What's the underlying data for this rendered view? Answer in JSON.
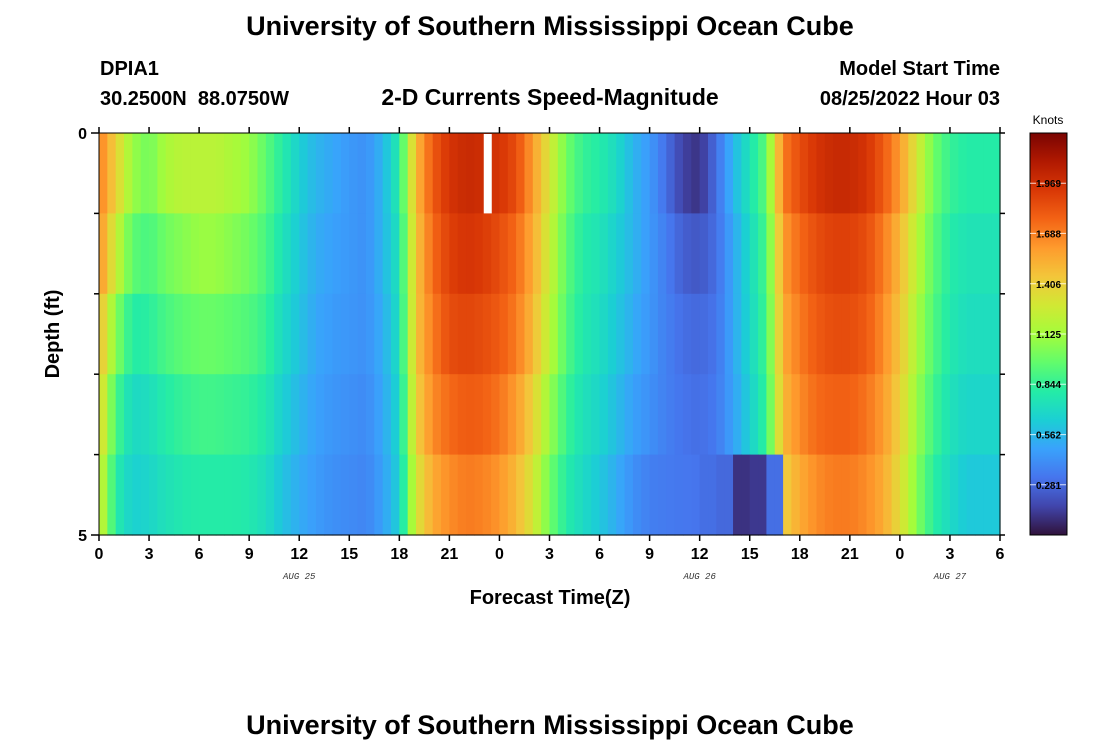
{
  "header": {
    "title": "University of Southern Mississippi Ocean Cube",
    "station_id": "DPIA1",
    "station_coords": "30.2500N  88.0750W",
    "plot_title": "2-D Currents Speed-Magnitude",
    "model_start_label": "Model Start Time",
    "model_start_value": "08/25/2022 Hour 03",
    "second_title": "University of Southern Mississippi Ocean Cube"
  },
  "chart_data": {
    "type": "heatmap",
    "title": "2-D Currents Speed-Magnitude",
    "xlabel": "Forecast Time(Z)",
    "ylabel": "Depth (ft)",
    "x_tick_labels": [
      "0",
      "3",
      "6",
      "9",
      "12",
      "15",
      "18",
      "21",
      "0",
      "3",
      "6",
      "9",
      "12",
      "15",
      "18",
      "21",
      "0",
      "3",
      "6"
    ],
    "date_labels": [
      {
        "text": "AUG 25",
        "tick": 4
      },
      {
        "text": "AUG 26",
        "tick": 12
      },
      {
        "text": "AUG 27",
        "tick": 17
      }
    ],
    "y_tick_labels": [
      "0",
      "5"
    ],
    "ylim": [
      0,
      5
    ],
    "x_hours": [
      0,
      54
    ],
    "colorbar": {
      "label": "Knots",
      "tick_labels": [
        "1.969",
        "1.688",
        "1.406",
        "1.125",
        "0.844",
        "0.562",
        "0.281"
      ],
      "tick_values": [
        1.969,
        1.688,
        1.406,
        1.125,
        0.844,
        0.562,
        0.281
      ],
      "range": [
        0.0,
        2.25
      ],
      "colormap": [
        "#30123b",
        "#4145ab",
        "#4675ed",
        "#39a2fc",
        "#1bcfd4",
        "#24eca6",
        "#61fc6c",
        "#a4fc3b",
        "#d1e834",
        "#f3c63a",
        "#fe9b2d",
        "#f36315",
        "#d93806",
        "#b11901",
        "#7a0402"
      ]
    },
    "depth_rows": 5,
    "hour_knots": [
      0,
      1,
      2,
      3,
      4,
      5,
      6,
      7,
      8,
      9,
      10,
      11,
      12,
      13,
      14,
      15,
      16,
      17,
      18,
      19,
      20,
      21,
      22,
      23,
      24,
      25,
      26,
      27,
      28,
      29,
      30,
      31,
      32,
      33,
      34,
      35,
      36,
      37,
      38,
      39,
      40,
      41,
      42,
      43,
      44,
      45,
      46,
      47,
      48,
      49,
      50,
      51,
      52,
      53,
      54
    ],
    "row_values": [
      [
        1.7,
        1.4,
        1.1,
        1.0,
        1.15,
        1.2,
        1.2,
        1.2,
        1.15,
        1.1,
        0.95,
        0.8,
        0.65,
        0.55,
        0.5,
        0.45,
        0.42,
        0.55,
        0.8,
        1.5,
        1.8,
        1.95,
        2.0,
        1.98,
        1.95,
        1.85,
        1.6,
        1.3,
        1.0,
        0.85,
        0.8,
        0.7,
        0.55,
        0.45,
        0.3,
        0.15,
        0.1,
        0.3,
        0.55,
        0.75,
        0.95,
        1.7,
        1.85,
        1.95,
        2.0,
        2.0,
        1.95,
        1.8,
        1.6,
        1.3,
        1.0,
        0.85,
        0.8,
        0.8,
        0.8
      ],
      [
        1.65,
        1.25,
        0.95,
        0.9,
        1.0,
        1.05,
        1.1,
        1.1,
        1.05,
        1.0,
        0.9,
        0.75,
        0.62,
        0.52,
        0.48,
        0.45,
        0.42,
        0.55,
        0.75,
        1.45,
        1.75,
        1.9,
        1.95,
        1.92,
        1.85,
        1.75,
        1.55,
        1.25,
        0.95,
        0.8,
        0.75,
        0.65,
        0.55,
        0.45,
        0.35,
        0.25,
        0.22,
        0.3,
        0.5,
        0.7,
        0.9,
        1.6,
        1.75,
        1.85,
        1.9,
        1.9,
        1.85,
        1.7,
        1.5,
        1.2,
        0.95,
        0.8,
        0.75,
        0.75,
        0.75
      ],
      [
        1.5,
        1.05,
        0.8,
        0.82,
        0.9,
        0.95,
        0.98,
        0.98,
        0.95,
        0.92,
        0.85,
        0.7,
        0.6,
        0.5,
        0.46,
        0.44,
        0.42,
        0.52,
        0.72,
        1.45,
        1.7,
        1.85,
        1.88,
        1.85,
        1.8,
        1.7,
        1.5,
        1.2,
        0.92,
        0.78,
        0.72,
        0.62,
        0.52,
        0.44,
        0.36,
        0.3,
        0.28,
        0.32,
        0.5,
        0.68,
        0.88,
        1.55,
        1.7,
        1.8,
        1.85,
        1.85,
        1.8,
        1.65,
        1.45,
        1.15,
        0.92,
        0.78,
        0.72,
        0.72,
        0.72
      ],
      [
        1.4,
        0.9,
        0.7,
        0.72,
        0.8,
        0.85,
        0.88,
        0.88,
        0.86,
        0.84,
        0.78,
        0.65,
        0.56,
        0.48,
        0.44,
        0.42,
        0.4,
        0.5,
        0.68,
        1.4,
        1.65,
        1.75,
        1.8,
        1.78,
        1.72,
        1.6,
        1.4,
        1.1,
        0.86,
        0.74,
        0.68,
        0.58,
        0.48,
        0.42,
        0.36,
        0.32,
        0.3,
        0.34,
        0.48,
        0.65,
        0.85,
        1.5,
        1.65,
        1.75,
        1.78,
        1.78,
        1.72,
        1.6,
        1.4,
        1.1,
        0.88,
        0.74,
        0.68,
        0.68,
        0.68
      ],
      [
        1.3,
        0.8,
        0.65,
        0.68,
        0.74,
        0.78,
        0.8,
        0.8,
        0.8,
        0.78,
        0.72,
        0.6,
        0.52,
        0.46,
        0.42,
        0.4,
        0.38,
        0.48,
        0.65,
        1.3,
        1.55,
        1.65,
        1.7,
        1.68,
        1.62,
        1.5,
        1.3,
        1.0,
        0.8,
        0.7,
        0.62,
        0.52,
        0.42,
        0.36,
        0.34,
        0.33,
        0.32,
        0.34,
        0.45,
        0.6,
        0.8,
        1.4,
        1.55,
        1.65,
        1.7,
        1.7,
        1.65,
        1.55,
        1.35,
        1.05,
        0.82,
        0.7,
        0.62,
        0.62,
        0.62
      ]
    ],
    "bottom_row_override": {
      "hour_ranges": [
        [
          36,
          37,
          0.3
        ],
        [
          37,
          38,
          0.28
        ],
        [
          38,
          39,
          0.1
        ],
        [
          39,
          40,
          0.12
        ],
        [
          40,
          41,
          0.3
        ]
      ]
    },
    "gap_marker": {
      "hour": 23,
      "row": 0
    }
  }
}
